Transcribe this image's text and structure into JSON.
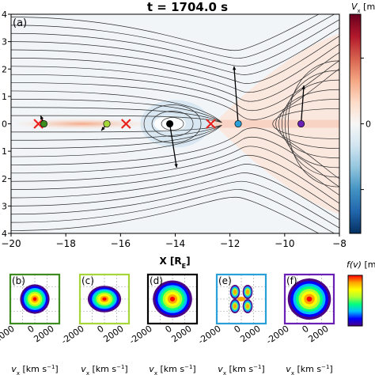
{
  "figure": {
    "title": "t = 1704.0 s"
  },
  "chart_data": [
    {
      "panel_label": "(a)",
      "type": "heatmap",
      "xlabel": "X [R",
      "xlabel_sub": "E",
      "xlabel_close": "]",
      "xlim": [
        -20,
        -8
      ],
      "ylim": [
        -4,
        4
      ],
      "x_ticks": [
        -20,
        -18,
        -16,
        -14,
        -12,
        -10,
        -8
      ],
      "y_tick_labels_visible": [
        "4",
        "3",
        "2",
        "1",
        "0",
        "1",
        "2",
        "3",
        "4"
      ],
      "y_tick_values": [
        4,
        3,
        2,
        1,
        0,
        -1,
        -2,
        -3,
        -4
      ],
      "colorbar": {
        "label": "V",
        "label_sub": "x",
        "label_rest": " [m",
        "tick_labels": [
          "",
          "0",
          ""
        ],
        "colors": [
          "#053061",
          "#2166ac",
          "#4393c3",
          "#92c5de",
          "#d1e5f0",
          "#f7f7f7",
          "#fddbc7",
          "#f4a582",
          "#d6604d",
          "#b2182b",
          "#67001f"
        ]
      },
      "x_points": [
        {
          "x": -19.0,
          "y": 0.0
        },
        {
          "x": -15.8,
          "y": 0.0
        },
        {
          "x": -12.7,
          "y": 0.0
        }
      ],
      "virtual_spacecraft": [
        {
          "x": -18.8,
          "y": 0.0,
          "color": "#3d8c1f",
          "vx": -0.12,
          "vy": 0.3
        },
        {
          "x": -16.5,
          "y": 0.0,
          "color": "#a5d63a",
          "vx": -0.2,
          "vy": -0.25
        },
        {
          "x": -14.2,
          "y": 0.0,
          "color": "#000000",
          "vx": 0.25,
          "vy": -1.6
        },
        {
          "x": -11.7,
          "y": 0.0,
          "color": "#2aa0d8",
          "vx": -0.15,
          "vy": 2.1
        },
        {
          "x": -9.4,
          "y": 0.0,
          "color": "#6a1fb5",
          "vx": 0.1,
          "vy": 1.4
        }
      ]
    },
    {
      "panel_label": "(b)",
      "type": "heatmap",
      "frame_color": "#3d8c1f",
      "xlabel": "v",
      "xlabel_sub": "x",
      "xlabel_rest": " [km s",
      "xlabel_sup": "−1",
      "xlabel_close": "]",
      "x_tick_labels": [
        "2000",
        "0",
        "2000"
      ],
      "shape": "compact-core"
    },
    {
      "panel_label": "(c)",
      "type": "heatmap",
      "frame_color": "#a5d63a",
      "xlabel": "v",
      "xlabel_sub": "x",
      "xlabel_rest": " [km s",
      "xlabel_sup": "−1",
      "xlabel_close": "]",
      "x_tick_labels": [
        "-2000",
        "0",
        "2000"
      ],
      "shape": "elongated-core"
    },
    {
      "panel_label": "(d)",
      "type": "heatmap",
      "frame_color": "#000000",
      "xlabel": "v",
      "xlabel_sub": "x",
      "xlabel_rest": " [km s",
      "xlabel_sup": "−1",
      "xlabel_close": "]",
      "x_tick_labels": [
        "-2000",
        "0",
        "2000"
      ],
      "shape": "broad-core"
    },
    {
      "panel_label": "(e)",
      "type": "heatmap",
      "frame_color": "#2aa0d8",
      "xlabel": "v",
      "xlabel_sub": "x",
      "xlabel_rest": " [km s",
      "xlabel_sup": "−1",
      "xlabel_close": "]",
      "x_tick_labels": [
        "-2000",
        "0",
        "2000"
      ],
      "shape": "split-lobes"
    },
    {
      "panel_label": "(f)",
      "type": "heatmap",
      "frame_color": "#6a1fb5",
      "xlabel": "v",
      "xlabel_sub": "x",
      "xlabel_rest": " [km s",
      "xlabel_sup": "−1",
      "xlabel_close": "]",
      "x_tick_labels": [
        "-2000",
        "0",
        "2000"
      ],
      "shape": "wide-warm"
    },
    {
      "type": "colorbar",
      "label": "f(v)",
      "label_rest": " [m",
      "colors": [
        "#4b0082",
        "#0000ff",
        "#00bfff",
        "#00ff7f",
        "#adff2f",
        "#ffff00",
        "#ffa500",
        "#ff0000"
      ]
    }
  ]
}
